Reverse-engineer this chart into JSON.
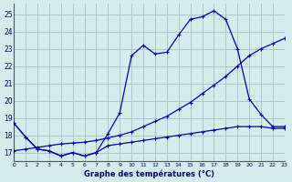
{
  "xlabel": "Graphe des températures (°C)",
  "bg_color": "#d4ecec",
  "grid_color": "#a8c8c8",
  "line_color": "#0000aa",
  "xlim": [
    0,
    23
  ],
  "ylim": [
    16.5,
    25.6
  ],
  "yticks": [
    17,
    18,
    19,
    20,
    21,
    22,
    23,
    24,
    25
  ],
  "xticks": [
    0,
    1,
    2,
    3,
    4,
    5,
    6,
    7,
    8,
    9,
    10,
    11,
    12,
    13,
    14,
    15,
    16,
    17,
    18,
    19,
    20,
    21,
    22,
    23
  ],
  "curve1_x": [
    0,
    1,
    2,
    3,
    4,
    5,
    6,
    7,
    8,
    9,
    10,
    11,
    12,
    13,
    14,
    15,
    16,
    17,
    18,
    19,
    20,
    21,
    22,
    23
  ],
  "curve1_y": [
    18.7,
    17.9,
    17.2,
    17.1,
    16.8,
    17.0,
    16.8,
    17.0,
    18.1,
    19.3,
    22.6,
    23.2,
    22.7,
    22.8,
    23.8,
    24.7,
    24.85,
    25.2,
    24.7,
    23.0,
    20.1,
    19.2,
    18.5,
    18.5
  ],
  "curve2_x": [
    0,
    1,
    2,
    3,
    4,
    5,
    6,
    7,
    8,
    9,
    10,
    11,
    12,
    13,
    14,
    15,
    16,
    17,
    18,
    19,
    20,
    21,
    22,
    23
  ],
  "curve2_y": [
    17.1,
    17.2,
    17.3,
    17.4,
    17.5,
    17.55,
    17.6,
    17.7,
    17.85,
    18.0,
    18.2,
    18.5,
    18.8,
    19.1,
    19.5,
    19.9,
    20.4,
    20.9,
    21.4,
    22.0,
    22.6,
    23.0,
    23.3,
    23.6
  ],
  "curve3_x": [
    0,
    1,
    2,
    3,
    4,
    5,
    6,
    7,
    8,
    9,
    10,
    11,
    12,
    13,
    14,
    15,
    16,
    17,
    18,
    19,
    20,
    21,
    22,
    23
  ],
  "curve3_y": [
    18.7,
    17.9,
    17.2,
    17.1,
    16.8,
    17.0,
    16.8,
    17.0,
    17.4,
    17.5,
    17.6,
    17.7,
    17.8,
    17.9,
    18.0,
    18.1,
    18.2,
    18.3,
    18.4,
    18.5,
    18.5,
    18.5,
    18.4,
    18.4
  ]
}
